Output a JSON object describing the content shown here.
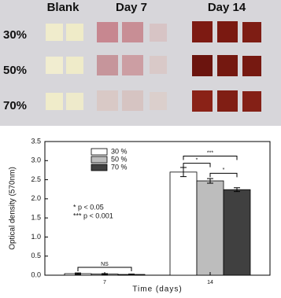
{
  "photo": {
    "columns": [
      "Blank",
      "Day 7",
      "Day 14"
    ],
    "rows": [
      "30%",
      "50%",
      "70%"
    ]
  },
  "chart_data": {
    "type": "bar",
    "ylabel": "Optical density (570nm)",
    "xlabel": "Time (days)",
    "categories": [
      "7",
      "14"
    ],
    "series": [
      {
        "name": "30 %",
        "color": "#ffffff",
        "values": [
          0.04,
          2.7
        ],
        "errors": [
          0.02,
          0.12
        ]
      },
      {
        "name": "50 %",
        "color": "#bdbdbd",
        "values": [
          0.03,
          2.47
        ],
        "errors": [
          0.01,
          0.06
        ]
      },
      {
        "name": "70 %",
        "color": "#404040",
        "values": [
          0.02,
          2.24
        ],
        "errors": [
          0.01,
          0.05
        ]
      }
    ],
    "ylim": [
      0,
      3.5
    ],
    "yticks": [
      {
        "value": 0,
        "label": "0.0"
      },
      0.5,
      {
        "value": 1,
        "label": "1.0"
      },
      1.5,
      {
        "value": 2,
        "label": "2.0"
      },
      2.5,
      {
        "value": 3,
        "label": "3.0"
      },
      3.5
    ],
    "annotations": [
      "NS",
      "***",
      "*",
      "*"
    ],
    "notes": [
      "* p < 0.05",
      "*** p < 0.001"
    ],
    "legend": "upper left"
  }
}
